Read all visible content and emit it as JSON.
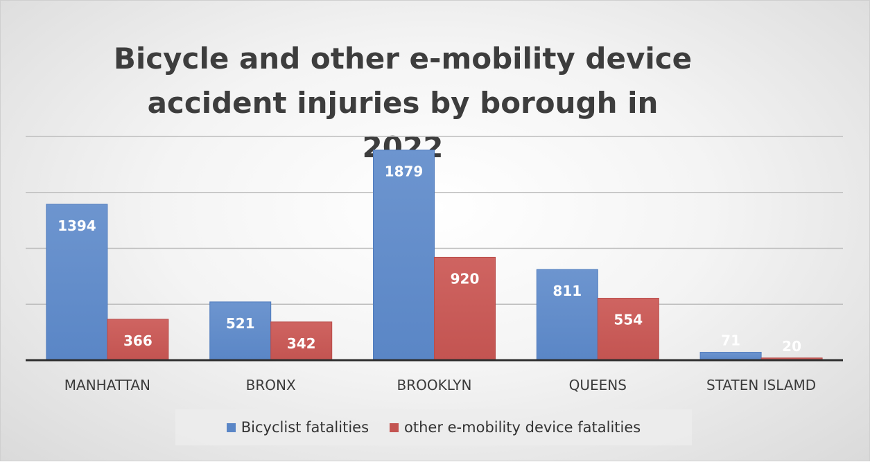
{
  "chart_data": {
    "type": "bar",
    "title": "Bicycle and other e-mobility device accident injuries by borough in 2022",
    "categories": [
      "MANHATTAN",
      "BRONX",
      "BROOKLYN",
      "QUEENS",
      "STATEN ISLAMD"
    ],
    "series": [
      {
        "name": "Bicyclist fatalities",
        "color": "#4472c4",
        "values": [
          1394,
          521,
          1879,
          811,
          71
        ]
      },
      {
        "name": "other e-mobility device fatalities",
        "color": "#c0504d",
        "values": [
          366,
          342,
          920,
          554,
          20
        ]
      }
    ],
    "ylim": [
      0,
      2000
    ],
    "grid": true,
    "legend_position": "bottom",
    "xlabel": "",
    "ylabel": ""
  }
}
